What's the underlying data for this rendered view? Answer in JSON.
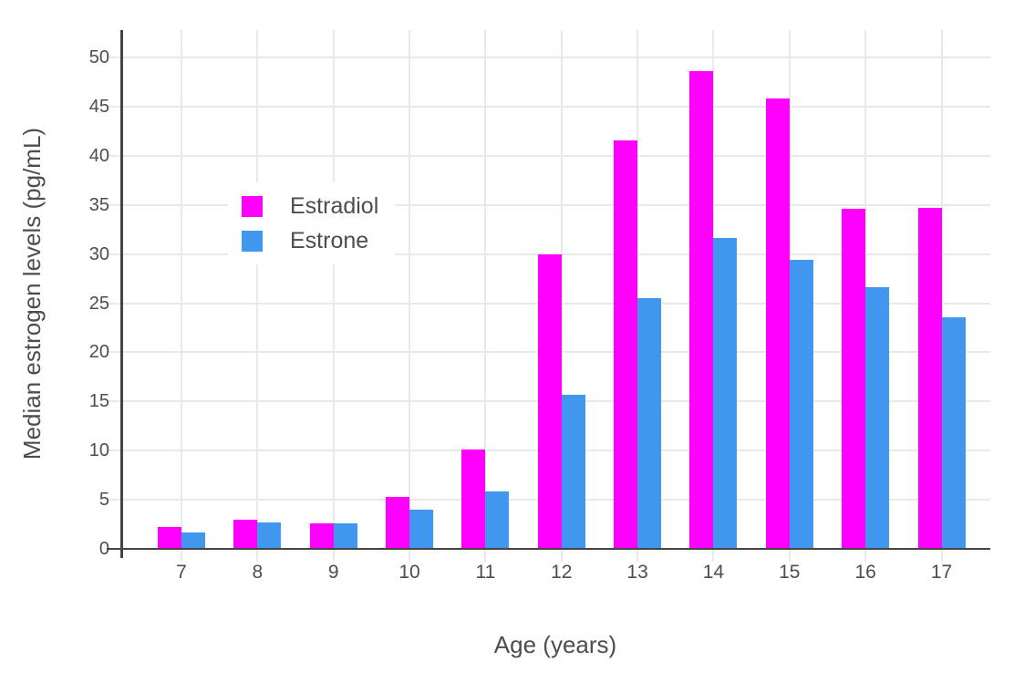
{
  "chart_data": {
    "type": "bar",
    "title": "",
    "xlabel": "Age (years)",
    "ylabel": "Median estrogen levels (pg/mL)",
    "categories": [
      7,
      8,
      9,
      10,
      11,
      12,
      13,
      14,
      15,
      16,
      17
    ],
    "x_tick_labels": [
      "7",
      "8",
      "9",
      "10",
      "11",
      "12",
      "13",
      "14",
      "15",
      "16",
      "17"
    ],
    "yticks": [
      0,
      5,
      10,
      15,
      20,
      25,
      30,
      35,
      40,
      45,
      50
    ],
    "y_tick_labels": [
      "0",
      "5",
      "10",
      "15",
      "20",
      "25",
      "30",
      "35",
      "40",
      "45",
      "50"
    ],
    "ylim": [
      0,
      52.8
    ],
    "grid": true,
    "legend_position": "inside top-left",
    "series": [
      {
        "name": "Estradiol",
        "color": "#FF00FF",
        "values": [
          2.2,
          3.0,
          2.6,
          5.3,
          10.1,
          30.0,
          41.6,
          48.6,
          45.8,
          34.6,
          34.7
        ]
      },
      {
        "name": "Estrone",
        "color": "#4197EE",
        "values": [
          1.7,
          2.7,
          2.6,
          4.0,
          5.8,
          15.7,
          25.5,
          31.6,
          29.4,
          26.6,
          23.6
        ]
      }
    ]
  },
  "colors": {
    "estradiol": "#FF00FF",
    "estrone": "#4197EE",
    "gridline": "#E9E9E9",
    "axis_line": "#444444",
    "text": "#4D4D4D",
    "background": "#FFFFFF"
  }
}
